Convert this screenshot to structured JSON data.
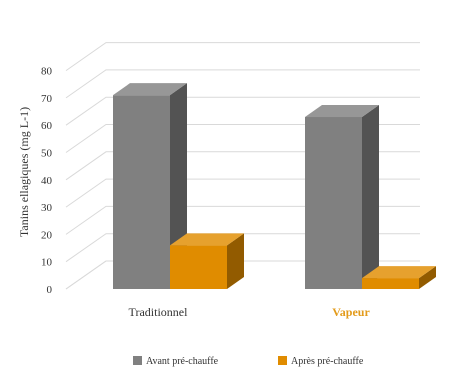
{
  "chart_data": {
    "type": "bar",
    "title": "",
    "xlabel": "",
    "ylabel": "Tanins ellagiques (mg L-1)",
    "ylim": [
      0,
      80
    ],
    "yticks": [
      0,
      10,
      20,
      30,
      40,
      50,
      60,
      70,
      80
    ],
    "grid": true,
    "legend_position": "bottom",
    "categories": [
      "Traditionnel",
      "Vapeur"
    ],
    "category_colors": [
      "#333333",
      "#e39b1b"
    ],
    "series": [
      {
        "name": "Avant pré-chauffe",
        "values": [
          71,
          63
        ],
        "color": "#808080"
      },
      {
        "name": "Après pré-chauffe",
        "values": [
          16,
          4
        ],
        "color": "#e08c00"
      }
    ]
  }
}
